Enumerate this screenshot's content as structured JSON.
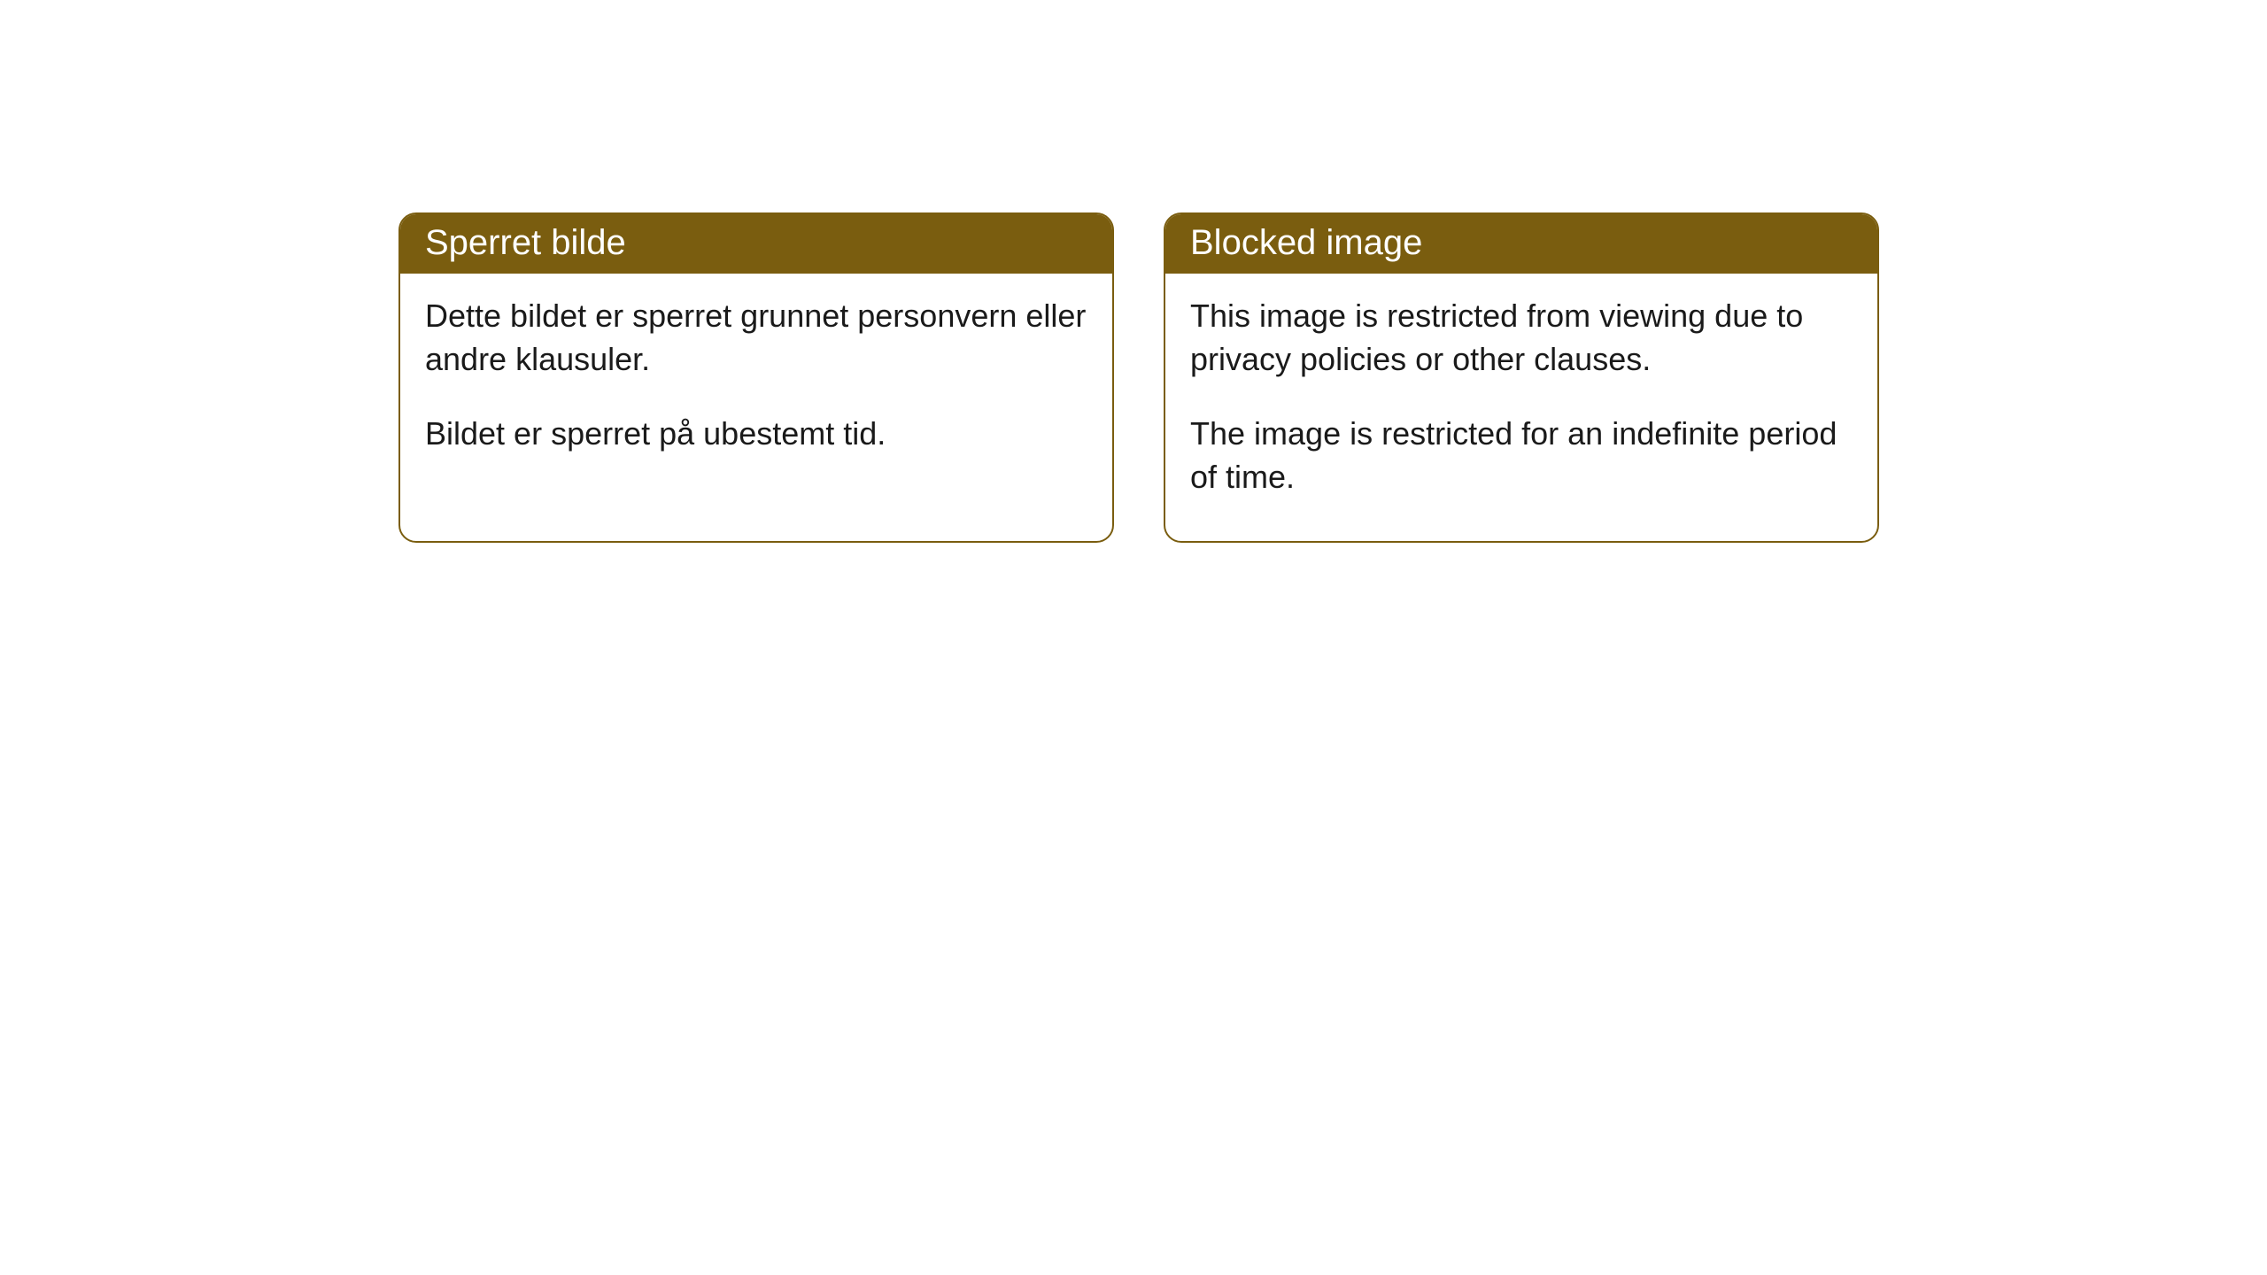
{
  "cards": {
    "norwegian": {
      "title": "Sperret bilde",
      "paragraph1": "Dette bildet er sperret grunnet personvern eller andre klausuler.",
      "paragraph2": "Bildet er sperret på ubestemt tid."
    },
    "english": {
      "title": "Blocked image",
      "paragraph1": "This image is restricted from viewing due to privacy policies or other clauses.",
      "paragraph2": "The image is restricted for an indefinite period of time."
    }
  },
  "style": {
    "header_bg_color": "#7a5d0f",
    "header_text_color": "#ffffff",
    "border_color": "#7a5d0f",
    "body_text_color": "#1a1a1a",
    "background_color": "#ffffff",
    "border_radius": 20,
    "header_fontsize": 40,
    "body_fontsize": 36
  }
}
